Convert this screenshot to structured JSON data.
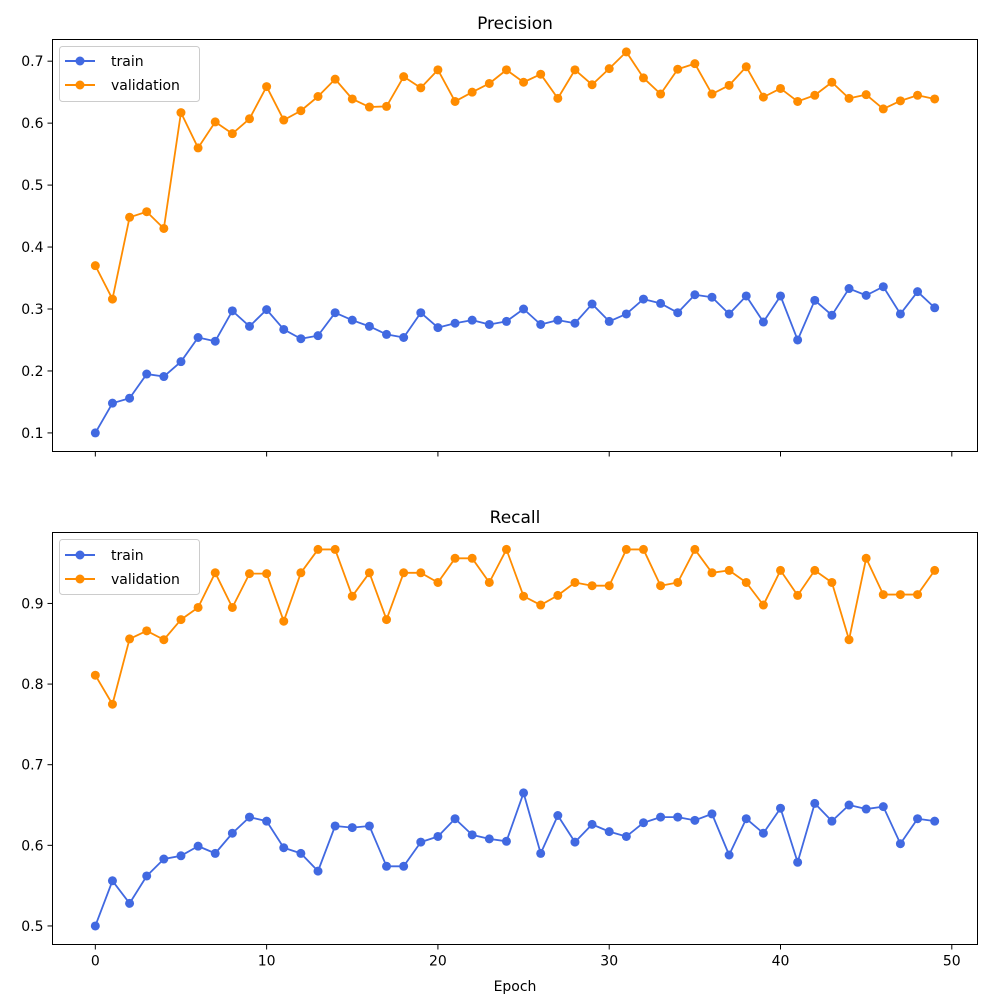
{
  "figure": {
    "xlabel": "Epoch",
    "shared_x_ticks": [
      0,
      10,
      20,
      30,
      40,
      50
    ]
  },
  "chart_data": [
    {
      "type": "line",
      "title": "Precision",
      "xlabel": "",
      "ylabel": "",
      "xlim": [
        -2.5,
        51.5
      ],
      "ylim": [
        0.07,
        0.735
      ],
      "xticks": [
        0,
        10,
        20,
        30,
        40,
        50
      ],
      "xtick_labels_visible": false,
      "yticks": [
        0.1,
        0.2,
        0.3,
        0.4,
        0.5,
        0.6,
        0.7
      ],
      "ytick_labels": [
        "0.1",
        "0.2",
        "0.3",
        "0.4",
        "0.5",
        "0.6",
        "0.7"
      ],
      "grid": false,
      "legend": "upper left",
      "marker": "circle",
      "x": [
        0,
        1,
        2,
        3,
        4,
        5,
        6,
        7,
        8,
        9,
        10,
        11,
        12,
        13,
        14,
        15,
        16,
        17,
        18,
        19,
        20,
        21,
        22,
        23,
        24,
        25,
        26,
        27,
        28,
        29,
        30,
        31,
        32,
        33,
        34,
        35,
        36,
        37,
        38,
        39,
        40,
        41,
        42,
        43,
        44,
        45,
        46,
        47,
        48,
        49
      ],
      "series": [
        {
          "name": "train",
          "color": "#4169e1",
          "values": [
            0.1,
            0.148,
            0.156,
            0.195,
            0.191,
            0.215,
            0.254,
            0.248,
            0.297,
            0.272,
            0.299,
            0.267,
            0.252,
            0.257,
            0.294,
            0.282,
            0.272,
            0.259,
            0.254,
            0.294,
            0.27,
            0.277,
            0.282,
            0.275,
            0.28,
            0.3,
            0.275,
            0.282,
            0.277,
            0.308,
            0.28,
            0.292,
            0.316,
            0.309,
            0.294,
            0.323,
            0.319,
            0.292,
            0.321,
            0.279,
            0.321,
            0.25,
            0.314,
            0.29,
            0.333,
            0.322,
            0.336,
            0.292,
            0.328,
            0.302
          ]
        },
        {
          "name": "validation",
          "color": "#ff8c00",
          "values": [
            0.37,
            0.316,
            0.448,
            0.457,
            0.43,
            0.617,
            0.56,
            0.602,
            0.583,
            0.607,
            0.659,
            0.605,
            0.62,
            0.643,
            0.671,
            0.639,
            0.626,
            0.627,
            0.675,
            0.657,
            0.686,
            0.635,
            0.65,
            0.664,
            0.686,
            0.666,
            0.679,
            0.64,
            0.686,
            0.662,
            0.688,
            0.715,
            0.673,
            0.647,
            0.687,
            0.696,
            0.647,
            0.661,
            0.691,
            0.642,
            0.656,
            0.635,
            0.645,
            0.666,
            0.64,
            0.646,
            0.623,
            0.636,
            0.645,
            0.639
          ]
        }
      ]
    },
    {
      "type": "line",
      "title": "Recall",
      "xlabel": "Epoch",
      "ylabel": "",
      "xlim": [
        -2.5,
        51.5
      ],
      "ylim": [
        0.477,
        0.988
      ],
      "xticks": [
        0,
        10,
        20,
        30,
        40,
        50
      ],
      "xtick_labels": [
        "0",
        "10",
        "20",
        "30",
        "40",
        "50"
      ],
      "yticks": [
        0.5,
        0.6,
        0.7,
        0.8,
        0.9
      ],
      "ytick_labels": [
        "0.5",
        "0.6",
        "0.7",
        "0.8",
        "0.9"
      ],
      "grid": false,
      "legend": "upper left",
      "marker": "circle",
      "x": [
        0,
        1,
        2,
        3,
        4,
        5,
        6,
        7,
        8,
        9,
        10,
        11,
        12,
        13,
        14,
        15,
        16,
        17,
        18,
        19,
        20,
        21,
        22,
        23,
        24,
        25,
        26,
        27,
        28,
        29,
        30,
        31,
        32,
        33,
        34,
        35,
        36,
        37,
        38,
        39,
        40,
        41,
        42,
        43,
        44,
        45,
        46,
        47,
        48,
        49
      ],
      "series": [
        {
          "name": "train",
          "color": "#4169e1",
          "values": [
            0.5,
            0.556,
            0.528,
            0.562,
            0.583,
            0.587,
            0.599,
            0.59,
            0.615,
            0.635,
            0.63,
            0.597,
            0.59,
            0.568,
            0.624,
            0.622,
            0.624,
            0.574,
            0.574,
            0.604,
            0.611,
            0.633,
            0.613,
            0.608,
            0.605,
            0.665,
            0.59,
            0.637,
            0.604,
            0.626,
            0.617,
            0.611,
            0.628,
            0.635,
            0.635,
            0.631,
            0.639,
            0.588,
            0.633,
            0.615,
            0.646,
            0.579,
            0.652,
            0.63,
            0.65,
            0.645,
            0.648,
            0.602,
            0.633,
            0.63
          ]
        },
        {
          "name": "validation",
          "color": "#ff8c00",
          "values": [
            0.811,
            0.775,
            0.856,
            0.866,
            0.855,
            0.88,
            0.895,
            0.938,
            0.895,
            0.937,
            0.937,
            0.878,
            0.938,
            0.967,
            0.967,
            0.909,
            0.938,
            0.88,
            0.938,
            0.938,
            0.926,
            0.956,
            0.956,
            0.926,
            0.967,
            0.909,
            0.898,
            0.91,
            0.926,
            0.922,
            0.922,
            0.967,
            0.967,
            0.922,
            0.926,
            0.967,
            0.938,
            0.941,
            0.926,
            0.898,
            0.941,
            0.91,
            0.941,
            0.926,
            0.855,
            0.956,
            0.911,
            0.911,
            0.911,
            0.941
          ]
        }
      ]
    }
  ]
}
